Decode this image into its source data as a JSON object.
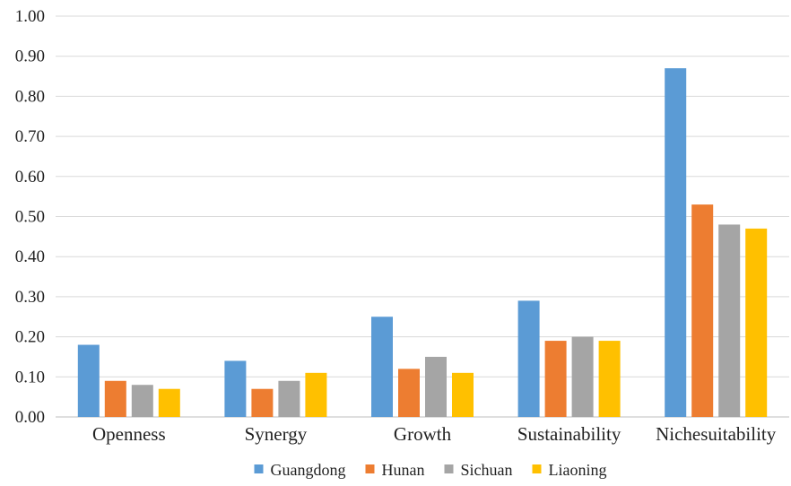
{
  "chart_data": {
    "type": "bar",
    "categories": [
      "Openness",
      "Synergy",
      "Growth",
      "Sustainability",
      "Nichesuitability"
    ],
    "series": [
      {
        "name": "Guangdong",
        "color": "#5b9bd5",
        "values": [
          0.18,
          0.14,
          0.25,
          0.29,
          0.87
        ]
      },
      {
        "name": "Hunan",
        "color": "#ed7d31",
        "values": [
          0.09,
          0.07,
          0.12,
          0.19,
          0.53
        ]
      },
      {
        "name": "Sichuan",
        "color": "#a5a5a5",
        "values": [
          0.08,
          0.09,
          0.15,
          0.2,
          0.48
        ]
      },
      {
        "name": "Liaoning",
        "color": "#ffc000",
        "values": [
          0.07,
          0.11,
          0.11,
          0.19,
          0.47
        ]
      }
    ],
    "yticks": [
      "0.00",
      "0.10",
      "0.20",
      "0.30",
      "0.40",
      "0.50",
      "0.60",
      "0.70",
      "0.80",
      "0.90",
      "1.00"
    ],
    "ylim": [
      0,
      1
    ],
    "grid": true,
    "legend_position": "bottom-center",
    "title": "",
    "xlabel": "",
    "ylabel": ""
  }
}
